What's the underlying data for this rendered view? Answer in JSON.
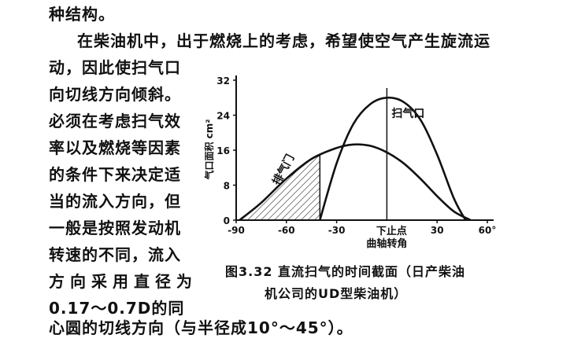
{
  "text": {
    "line1": "种结构。",
    "line2": "在柴油机中，出于燃烧上的考虑，希望使空气产生旋流运",
    "line3": "动，因此使扫气口",
    "line4": "向切线方向倾斜。",
    "line5": "必须在考虑扫气效",
    "line6": "率以及燃烧等因素",
    "line7": "的条件下来决定适",
    "line8": "当的流入方向，但",
    "line9": "一般是按照发动机",
    "line10": "转速的不同，流入",
    "line11": "方向采用直径为",
    "line12": "0.17～0.7D的同",
    "line13": "心圆的切线方向（与半径成10°～45°）。"
  },
  "figure": {
    "caption_line1": "图3.32  直流扫气的时间截面（日产柴油",
    "caption_line2": "机公司的UD型柴油机）",
    "y_axis_label": "气口面积 cm²",
    "x_axis_label": "曲轴转角",
    "tdc_label": "下止点",
    "scavenge_label": "扫气口",
    "exhaust_label": "排气门",
    "y_ticks": [
      "32",
      "24",
      "16",
      "8",
      "0"
    ],
    "x_ticks": [
      "-90",
      "-60",
      "-30",
      "30",
      "60°"
    ]
  },
  "chart_data": {
    "type": "line",
    "xlabel": "曲轴转角",
    "ylabel": "气口面积 cm²",
    "xlim": [
      -90,
      60
    ],
    "ylim": [
      0,
      32
    ],
    "series": [
      {
        "name": "扫气口",
        "x": [
          -40,
          -30,
          -20,
          -10,
          0,
          10,
          20,
          30,
          40,
          47
        ],
        "y": [
          0,
          13,
          22,
          26.5,
          28,
          27,
          23,
          15,
          5,
          0
        ]
      },
      {
        "name": "排气门",
        "x": [
          -88,
          -75,
          -60,
          -45,
          -30,
          -20,
          -10,
          0,
          10,
          20,
          30,
          40,
          50
        ],
        "y": [
          0,
          4,
          9.5,
          14,
          16.5,
          17.3,
          17,
          15.5,
          13,
          9.5,
          5.5,
          2,
          0
        ]
      }
    ],
    "shaded_region": {
      "series": "排气门",
      "x_range": [
        -88,
        -40
      ]
    }
  }
}
